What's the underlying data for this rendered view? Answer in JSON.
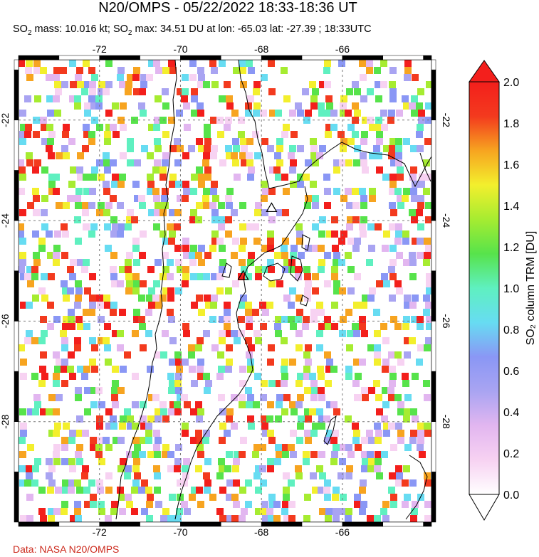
{
  "header": {
    "title": "N20/OMPS - 05/22/2022 18:33-18:36 UT",
    "subtitle_prefix": "SO",
    "subtitle_mass": " mass: 10.016 kt; SO",
    "subtitle_rest": " max: 34.51 DU at lon: -65.03 lat: -27.39 ; 18:33UTC",
    "sub2": "2"
  },
  "map": {
    "lon_ticks": [
      "-72",
      "-70",
      "-68",
      "-66"
    ],
    "lon_values": [
      -72,
      -70,
      -68,
      -66
    ],
    "lat_ticks": [
      "-22",
      "-24",
      "-26",
      "-28"
    ],
    "lat_values": [
      -22,
      -24,
      -26,
      -28
    ],
    "lon_range": [
      -74.0,
      -63.8
    ],
    "lat_range": [
      -20.8,
      -30.0
    ],
    "volcano_markers": [
      {
        "name": "volcano-1",
        "lon": -67.75,
        "lat": -23.75
      },
      {
        "name": "volcano-2",
        "lon": -68.45,
        "lat": -25.1
      }
    ]
  },
  "colorbar": {
    "label": "SO₂ column TRM [DU]",
    "ticks": [
      "0.0",
      "0.2",
      "0.4",
      "0.6",
      "0.8",
      "1.0",
      "1.2",
      "1.4",
      "1.6",
      "1.8",
      "2.0"
    ],
    "min": 0.0,
    "max": 2.0,
    "colors": [
      "#ffffff",
      "#f7d2f2",
      "#e2b6f0",
      "#a9a4f2",
      "#8a97f5",
      "#67dcf2",
      "#5ff0c0",
      "#57e34b",
      "#a6ec31",
      "#f3ef2d",
      "#f7a420",
      "#f33a1e",
      "#f31f1c"
    ]
  },
  "footer": {
    "credit": "Data: NASA N20/OMPS"
  }
}
